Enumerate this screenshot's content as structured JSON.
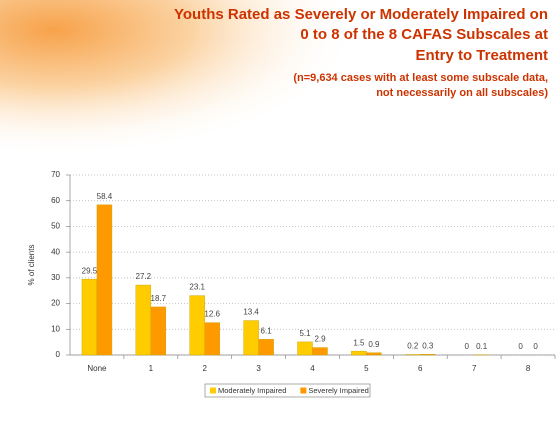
{
  "chart_data": {
    "type": "bar",
    "title": [
      "Youths Rated as Severely or Moderately Impaired on",
      "0 to 8 of the 8 CAFAS Subscales at",
      "Entry to Treatment"
    ],
    "subtitle": [
      "(n=9,634 cases with at least some subscale data,",
      "not necessarily on all subscales)"
    ],
    "y_label": "% of clients",
    "categories": [
      "None",
      "1",
      "2",
      "3",
      "4",
      "5",
      "6",
      "7",
      "8"
    ],
    "series": [
      {
        "name": "Moderately Impaired",
        "color": "#ffcc00",
        "values": [
          29.5,
          27.2,
          23.1,
          13.4,
          5.1,
          1.5,
          0.2,
          0,
          0
        ]
      },
      {
        "name": "Severely Impaired",
        "color": "#ff9900",
        "values": [
          58.4,
          18.7,
          12.6,
          6.1,
          2.9,
          0.9,
          0.3,
          0.1,
          0
        ]
      }
    ],
    "ylim": [
      0,
      70
    ],
    "yticks": [
      0,
      10,
      20,
      30,
      40,
      50,
      60,
      70
    ],
    "grid": true,
    "legend": "bottom"
  }
}
